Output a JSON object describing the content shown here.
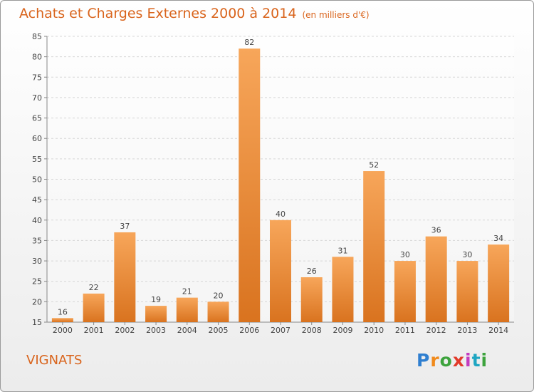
{
  "header": {
    "title": "Achats et Charges Externes 2000 à 2014",
    "unit": "(en milliers d'€)"
  },
  "footer": {
    "place": "VIGNATS",
    "logo": [
      "P",
      "r",
      "o",
      "x",
      "i",
      "t",
      "i"
    ]
  },
  "colors": {
    "bar_light": "#f7a65a",
    "bar_dark": "#d9731f",
    "title": "#d9641c"
  },
  "chart_data": {
    "type": "bar",
    "categories": [
      "2000",
      "2001",
      "2002",
      "2003",
      "2004",
      "2005",
      "2006",
      "2007",
      "2008",
      "2009",
      "2010",
      "2011",
      "2012",
      "2013",
      "2014"
    ],
    "values": [
      16,
      22,
      37,
      19,
      21,
      20,
      82,
      40,
      26,
      31,
      52,
      30,
      36,
      30,
      34
    ],
    "ylim": [
      15,
      85
    ],
    "yticks": [
      15,
      20,
      25,
      30,
      35,
      40,
      45,
      50,
      55,
      60,
      65,
      70,
      75,
      80,
      85
    ],
    "grid": true,
    "data_labels": true
  }
}
